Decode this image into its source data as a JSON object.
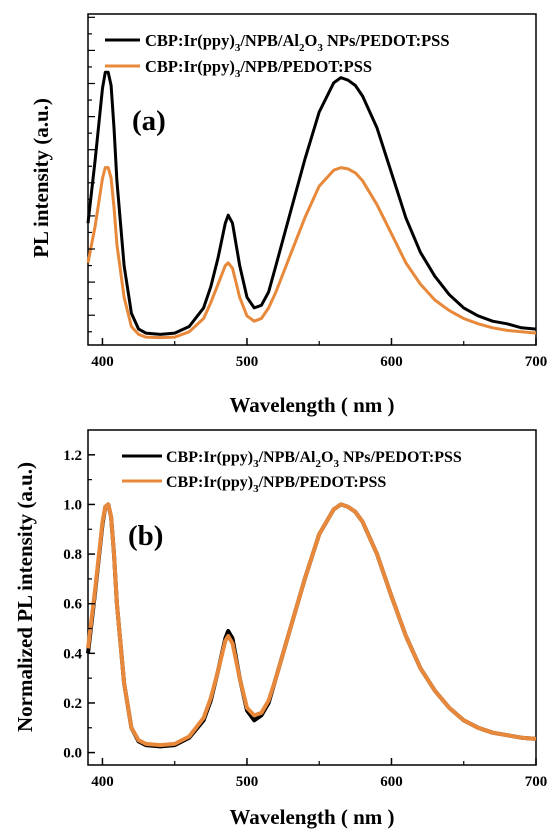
{
  "chart_data": [
    {
      "type": "line",
      "panel_label": "(a)",
      "xlabel": "Wavelength ( nm )",
      "ylabel": "PL intensity (a.u.)",
      "xlim": [
        390,
        700
      ],
      "ylim": [
        0,
        1.25
      ],
      "x_ticks": [
        400,
        500,
        600,
        700
      ],
      "y_ticks": [],
      "y_minor_ticks": true,
      "grid": false,
      "legend_position": "top",
      "x": [
        390,
        395,
        400,
        402,
        404,
        406,
        408,
        410,
        415,
        420,
        425,
        430,
        440,
        450,
        460,
        470,
        475,
        480,
        485,
        487,
        490,
        495,
        500,
        505,
        510,
        515,
        520,
        530,
        540,
        550,
        560,
        565,
        570,
        575,
        580,
        590,
        600,
        610,
        620,
        630,
        640,
        650,
        660,
        670,
        680,
        690,
        700
      ],
      "series": [
        {
          "name": "CBP:Ir(ppy)3/NPB/Al2O3 NPs/PEDOT:PSS",
          "color": "#000000",
          "values": [
            0.46,
            0.7,
            0.97,
            1.03,
            1.03,
            0.98,
            0.82,
            0.62,
            0.3,
            0.12,
            0.06,
            0.045,
            0.04,
            0.045,
            0.07,
            0.14,
            0.22,
            0.33,
            0.46,
            0.49,
            0.46,
            0.3,
            0.18,
            0.14,
            0.15,
            0.2,
            0.3,
            0.5,
            0.7,
            0.88,
            0.99,
            1.01,
            1.0,
            0.98,
            0.94,
            0.82,
            0.65,
            0.48,
            0.35,
            0.26,
            0.19,
            0.14,
            0.11,
            0.09,
            0.08,
            0.065,
            0.06
          ]
        },
        {
          "name": "CBP:Ir(ppy)3/NPB/PEDOT:PSS",
          "color": "#e8883a",
          "values": [
            0.31,
            0.45,
            0.63,
            0.67,
            0.67,
            0.63,
            0.52,
            0.38,
            0.18,
            0.07,
            0.04,
            0.03,
            0.028,
            0.03,
            0.05,
            0.1,
            0.16,
            0.23,
            0.3,
            0.31,
            0.29,
            0.18,
            0.11,
            0.09,
            0.1,
            0.14,
            0.2,
            0.34,
            0.48,
            0.6,
            0.66,
            0.67,
            0.665,
            0.65,
            0.62,
            0.53,
            0.42,
            0.31,
            0.23,
            0.17,
            0.13,
            0.1,
            0.08,
            0.065,
            0.055,
            0.05,
            0.045
          ]
        }
      ]
    },
    {
      "type": "line",
      "panel_label": "(b)",
      "xlabel": "Wavelength ( nm )",
      "ylabel": "Normalized PL intensity (a.u.)",
      "xlim": [
        390,
        700
      ],
      "ylim": [
        -0.05,
        1.3
      ],
      "x_ticks": [
        400,
        500,
        600,
        700
      ],
      "y_ticks": [
        0.0,
        0.2,
        0.4,
        0.6,
        0.8,
        1.0,
        1.2
      ],
      "y_tick_labels": [
        "0.0",
        "0.2",
        "0.4",
        "0.6",
        "0.8",
        "1.0",
        "1.2"
      ],
      "grid": false,
      "legend_position": "top",
      "x": [
        390,
        395,
        400,
        402,
        404,
        406,
        408,
        410,
        415,
        420,
        425,
        430,
        440,
        450,
        460,
        470,
        475,
        480,
        485,
        487,
        490,
        495,
        500,
        505,
        510,
        515,
        520,
        530,
        540,
        550,
        560,
        565,
        570,
        575,
        580,
        590,
        600,
        610,
        620,
        630,
        640,
        650,
        660,
        670,
        680,
        690,
        700
      ],
      "series": [
        {
          "name": "CBP:Ir(ppy)3/NPB/Al2O3 NPs/PEDOT:PSS",
          "color": "#000000",
          "values": [
            0.4,
            0.65,
            0.92,
            0.99,
            1.0,
            0.95,
            0.8,
            0.6,
            0.28,
            0.1,
            0.045,
            0.03,
            0.025,
            0.03,
            0.06,
            0.13,
            0.21,
            0.33,
            0.46,
            0.49,
            0.46,
            0.3,
            0.17,
            0.13,
            0.15,
            0.2,
            0.3,
            0.5,
            0.7,
            0.88,
            0.98,
            1.0,
            0.99,
            0.97,
            0.93,
            0.8,
            0.63,
            0.47,
            0.34,
            0.25,
            0.18,
            0.13,
            0.1,
            0.08,
            0.07,
            0.06,
            0.055
          ]
        },
        {
          "name": "CBP:Ir(ppy)3/NPB/PEDOT:PSS",
          "color": "#e8883a",
          "values": [
            0.42,
            0.66,
            0.93,
            0.99,
            1.0,
            0.95,
            0.8,
            0.6,
            0.28,
            0.1,
            0.05,
            0.035,
            0.03,
            0.035,
            0.065,
            0.14,
            0.22,
            0.33,
            0.45,
            0.47,
            0.44,
            0.3,
            0.18,
            0.15,
            0.16,
            0.21,
            0.3,
            0.5,
            0.7,
            0.88,
            0.98,
            1.0,
            0.99,
            0.97,
            0.93,
            0.8,
            0.63,
            0.47,
            0.34,
            0.25,
            0.18,
            0.13,
            0.1,
            0.08,
            0.07,
            0.06,
            0.055
          ]
        }
      ]
    }
  ]
}
